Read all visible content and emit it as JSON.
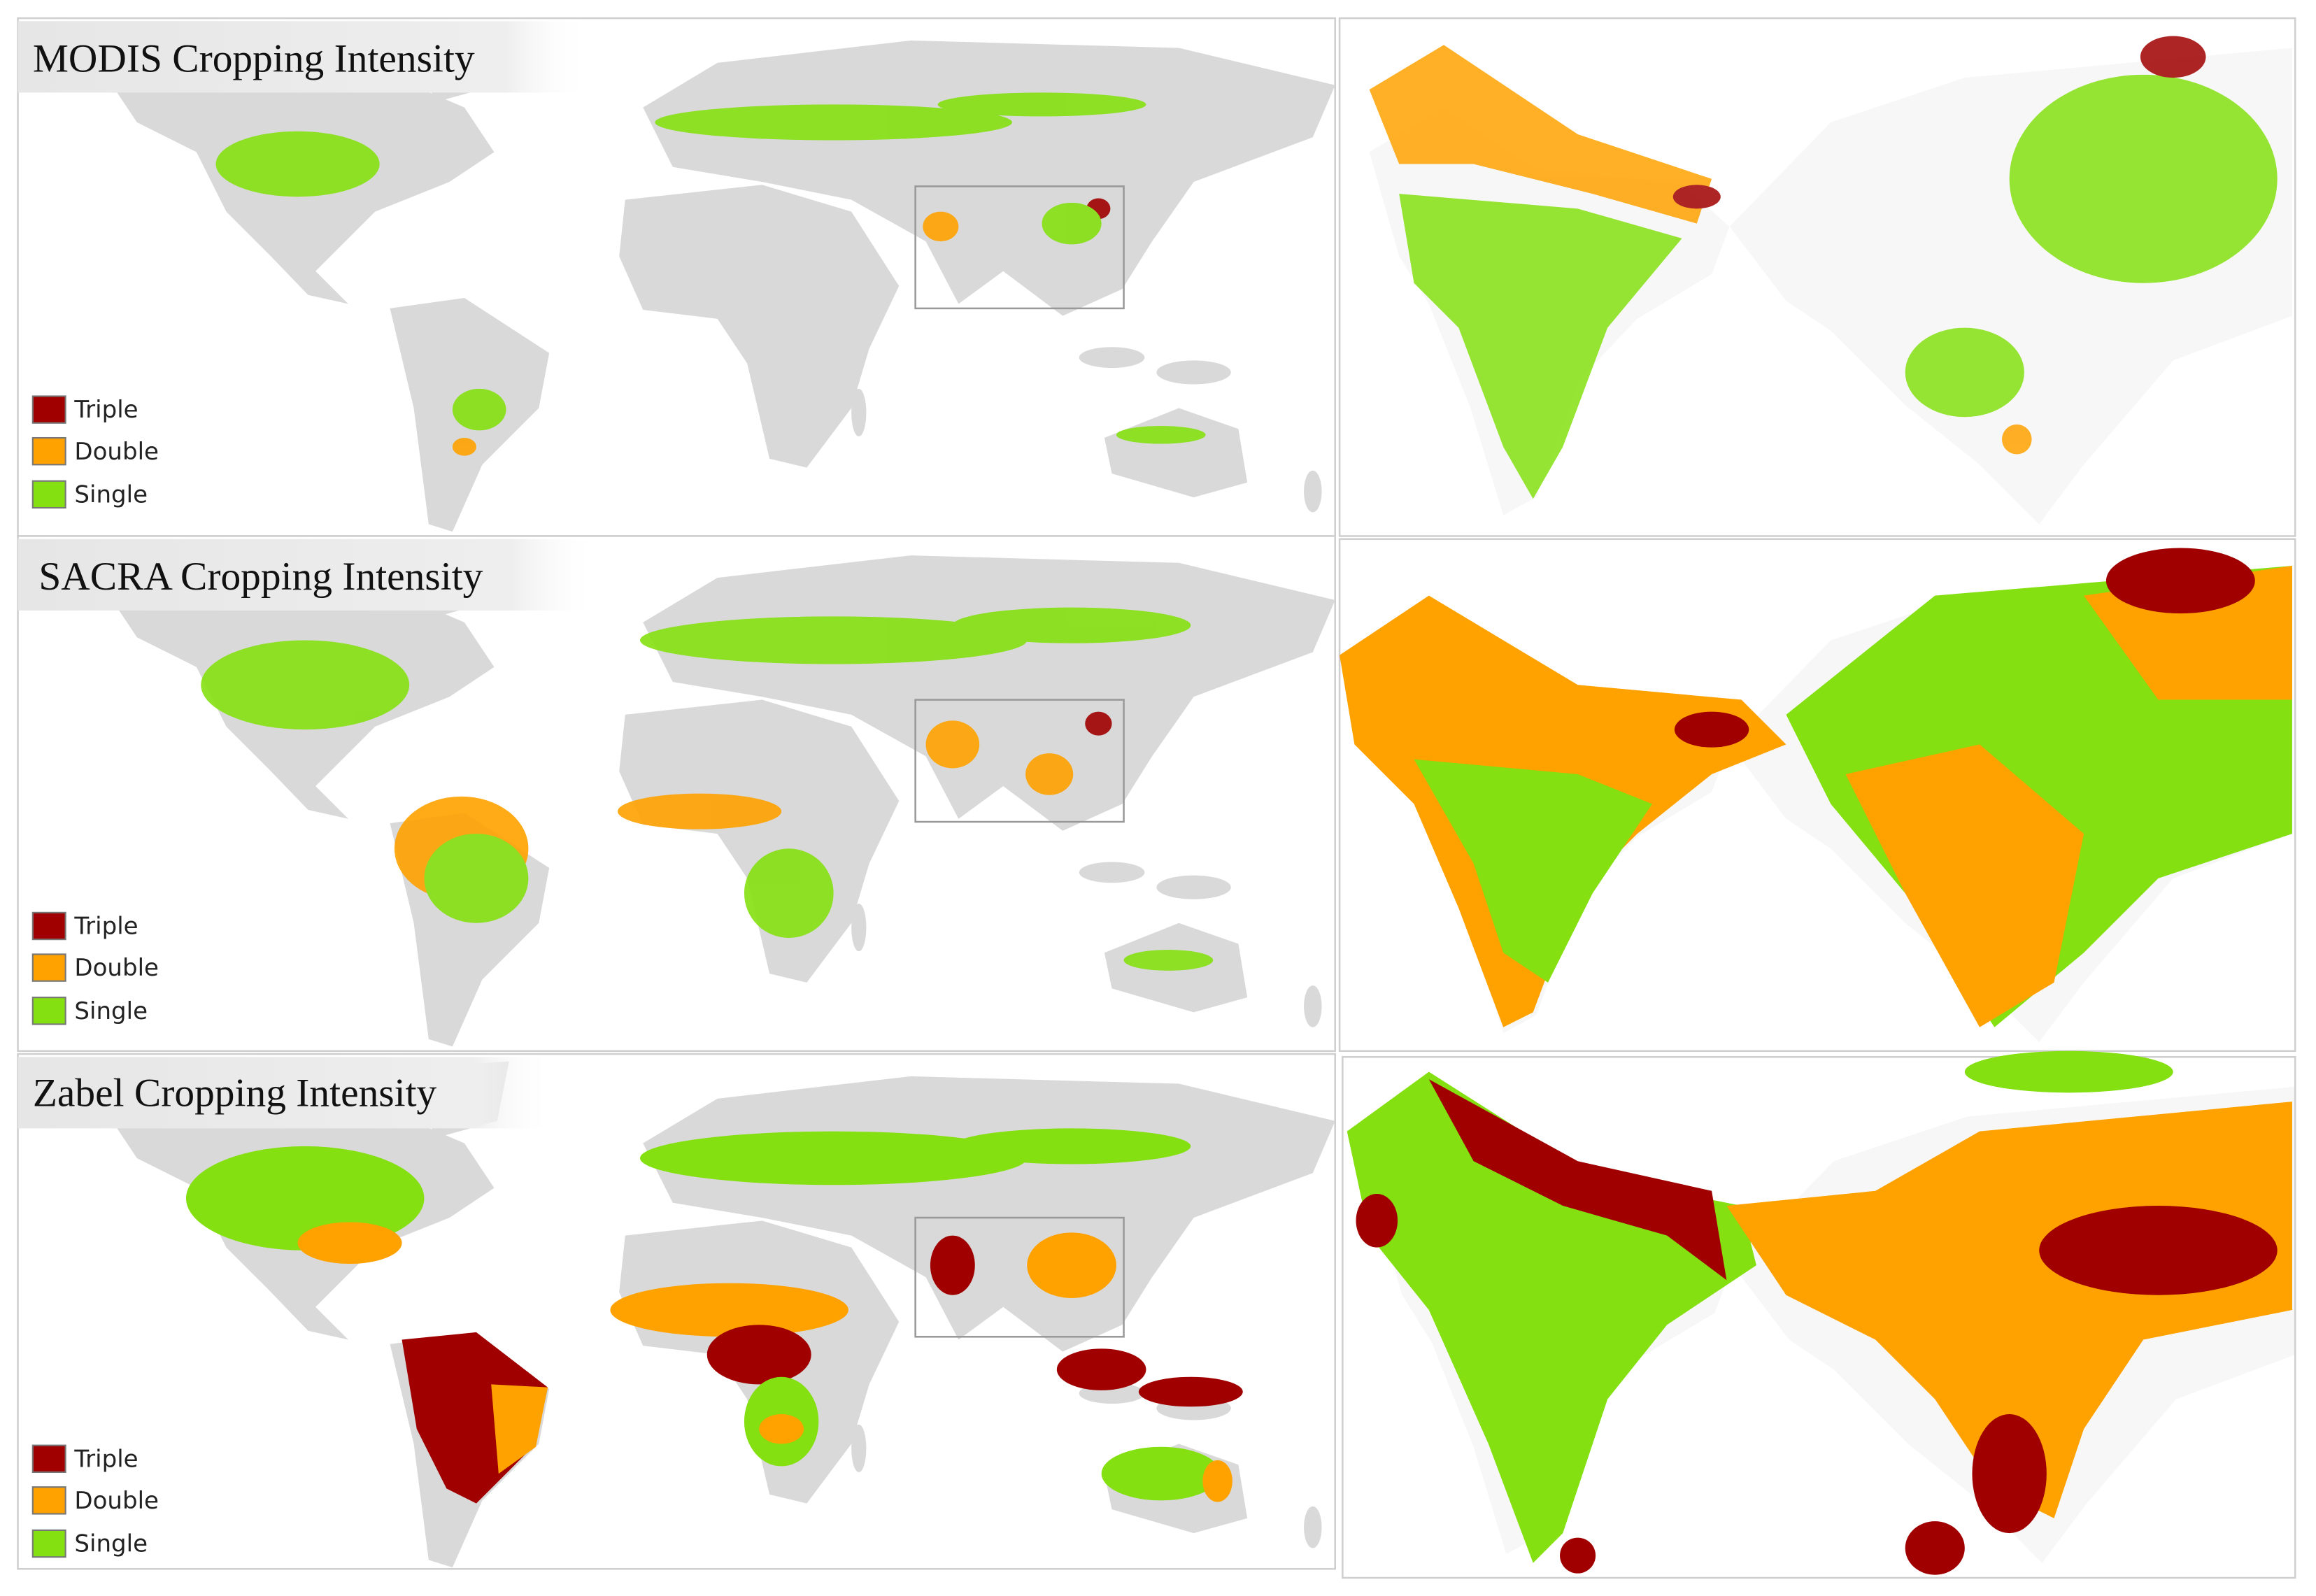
{
  "panels": [
    {
      "title": "MODIS Cropping Intensity",
      "legend": [
        "Triple",
        "Double",
        "Single"
      ]
    },
    {
      "title": "SACRA Cropping Intensity",
      "legend": [
        "Triple",
        "Double",
        "Single"
      ]
    },
    {
      "title": "Zabel Cropping Intensity",
      "legend": [
        "Triple",
        "Double",
        "Single"
      ]
    }
  ]
}
